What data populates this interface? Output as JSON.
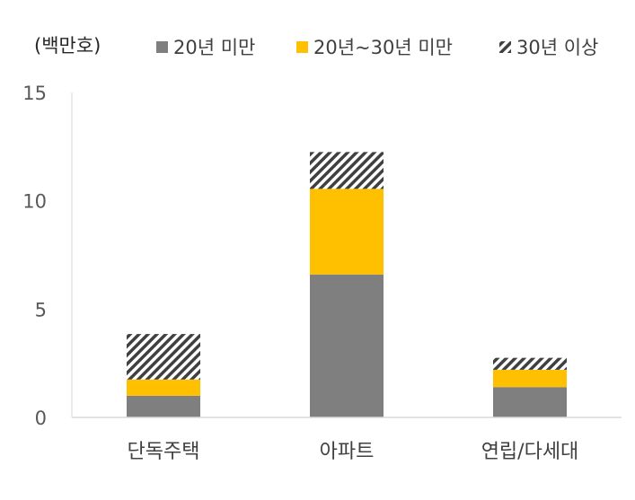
{
  "chart_data": {
    "type": "bar",
    "stacked": true,
    "unit_label": "(백만호)",
    "categories": [
      "단독주택",
      "아파트",
      "연립/다세대"
    ],
    "series": [
      {
        "name": "20년 미만",
        "values": [
          1.0,
          6.6,
          1.4
        ],
        "color": "#7f7f7f",
        "pattern": "solid"
      },
      {
        "name": "20년~30년 미만",
        "values": [
          0.75,
          3.95,
          0.8
        ],
        "color": "#ffc000",
        "pattern": "solid"
      },
      {
        "name": "30년 이상",
        "values": [
          2.1,
          1.7,
          0.55
        ],
        "color": "#404040",
        "pattern": "diagonal-hatch"
      }
    ],
    "ylim": [
      0,
      15
    ],
    "yticks": [
      0,
      5,
      10,
      15
    ],
    "grid": false,
    "legend_position": "top"
  }
}
